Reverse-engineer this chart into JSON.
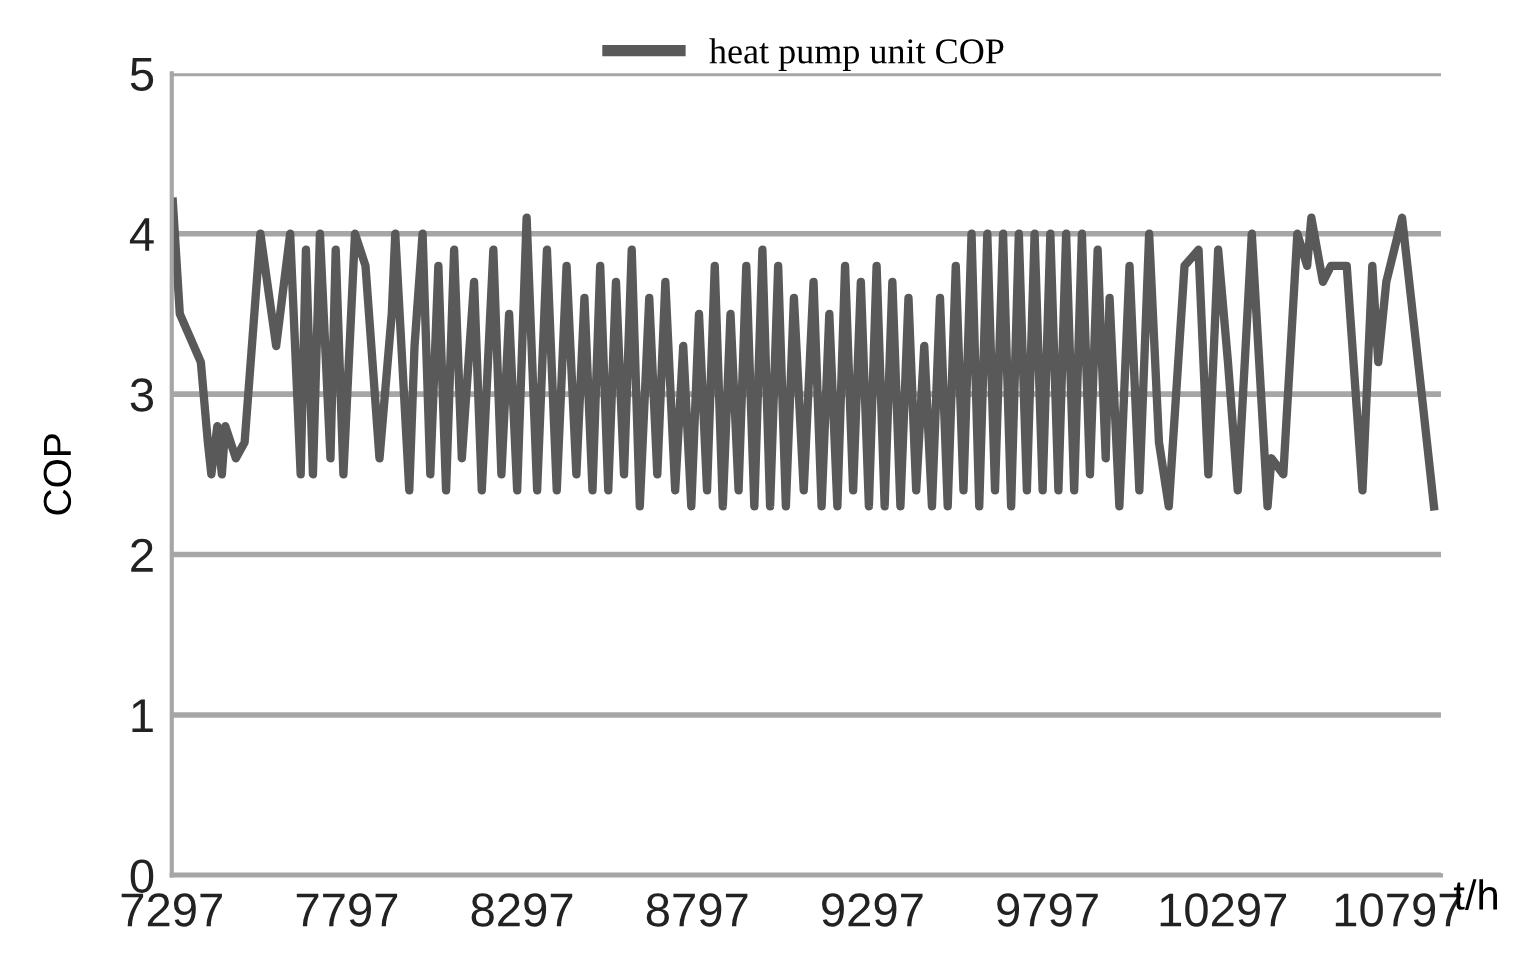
{
  "chart_data": {
    "type": "line",
    "xlabel": "t/h",
    "ylabel": "COP",
    "xlim": [
      7297,
      10920
    ],
    "xticks": [
      7297,
      7797,
      8297,
      8797,
      9297,
      9797,
      10297,
      10797
    ],
    "ylim": [
      0,
      5
    ],
    "yticks": [
      0,
      1,
      2,
      3,
      4,
      5
    ],
    "grid": "y",
    "legend": "top",
    "marker": "none",
    "line_style": "solid",
    "series": [
      {
        "name": "heat pump unit COP",
        "color": "#595959",
        "x": [
          7300,
          7320,
          7380,
          7400,
          7410,
          7427,
          7440,
          7450,
          7480,
          7505,
          7550,
          7595,
          7635,
          7665,
          7680,
          7700,
          7720,
          7750,
          7765,
          7787,
          7820,
          7850,
          7890,
          7925,
          7935,
          7975,
          7990,
          8013,
          8035,
          8058,
          8080,
          8103,
          8125,
          8160,
          8182,
          8215,
          8238,
          8260,
          8283,
          8310,
          8340,
          8368,
          8396,
          8424,
          8452,
          8475,
          8498,
          8520,
          8543,
          8565,
          8588,
          8610,
          8633,
          8660,
          8683,
          8706,
          8734,
          8757,
          8780,
          8802,
          8825,
          8847,
          8870,
          8892,
          8915,
          8937,
          8960,
          8983,
          9005,
          9028,
          9050,
          9073,
          9101,
          9129,
          9152,
          9174,
          9197,
          9219,
          9242,
          9264,
          9287,
          9309,
          9332,
          9354,
          9377,
          9400,
          9422,
          9445,
          9467,
          9490,
          9512,
          9535,
          9557,
          9580,
          9602,
          9625,
          9647,
          9670,
          9693,
          9715,
          9738,
          9760,
          9783,
          9805,
          9828,
          9850,
          9873,
          9895,
          9918,
          9940,
          9963,
          9974,
          10002,
          10031,
          10059,
          10087,
          10115,
          10143,
          10188,
          10228,
          10256,
          10284,
          10312,
          10340,
          10380,
          10425,
          10436,
          10470,
          10510,
          10538,
          10550,
          10583,
          10606,
          10651,
          10696,
          10724,
          10741,
          10764,
          10809,
          10865,
          10900
        ],
        "values": [
          4.2,
          3.5,
          3.2,
          2.7,
          2.5,
          2.8,
          2.5,
          2.8,
          2.6,
          2.7,
          4.0,
          3.3,
          4.0,
          2.5,
          3.9,
          2.5,
          4.0,
          2.6,
          3.9,
          2.5,
          4.0,
          3.8,
          2.6,
          3.5,
          4.0,
          2.4,
          3.3,
          4.0,
          2.5,
          3.8,
          2.4,
          3.9,
          2.6,
          3.7,
          2.4,
          3.9,
          2.5,
          3.5,
          2.4,
          4.1,
          2.4,
          3.9,
          2.4,
          3.8,
          2.5,
          3.6,
          2.4,
          3.8,
          2.4,
          3.7,
          2.5,
          3.9,
          2.3,
          3.6,
          2.5,
          3.7,
          2.4,
          3.3,
          2.3,
          3.5,
          2.4,
          3.8,
          2.3,
          3.5,
          2.4,
          3.8,
          2.3,
          3.9,
          2.3,
          3.8,
          2.3,
          3.6,
          2.4,
          3.7,
          2.3,
          3.5,
          2.3,
          3.8,
          2.4,
          3.7,
          2.3,
          3.8,
          2.3,
          3.7,
          2.3,
          3.6,
          2.4,
          3.3,
          2.3,
          3.6,
          2.3,
          3.8,
          2.4,
          4.0,
          2.3,
          4.0,
          2.4,
          4.0,
          2.3,
          4.0,
          2.4,
          4.0,
          2.4,
          4.0,
          2.4,
          4.0,
          2.4,
          4.0,
          2.5,
          3.9,
          2.6,
          3.6,
          2.3,
          3.8,
          2.4,
          4.0,
          2.7,
          2.3,
          3.8,
          3.9,
          2.5,
          3.9,
          3.2,
          2.4,
          4.0,
          2.3,
          2.6,
          2.5,
          4.0,
          3.8,
          4.1,
          3.7,
          3.8,
          3.8,
          2.4,
          3.8,
          3.2,
          3.7,
          4.1,
          3.0,
          2.3
        ]
      }
    ]
  }
}
